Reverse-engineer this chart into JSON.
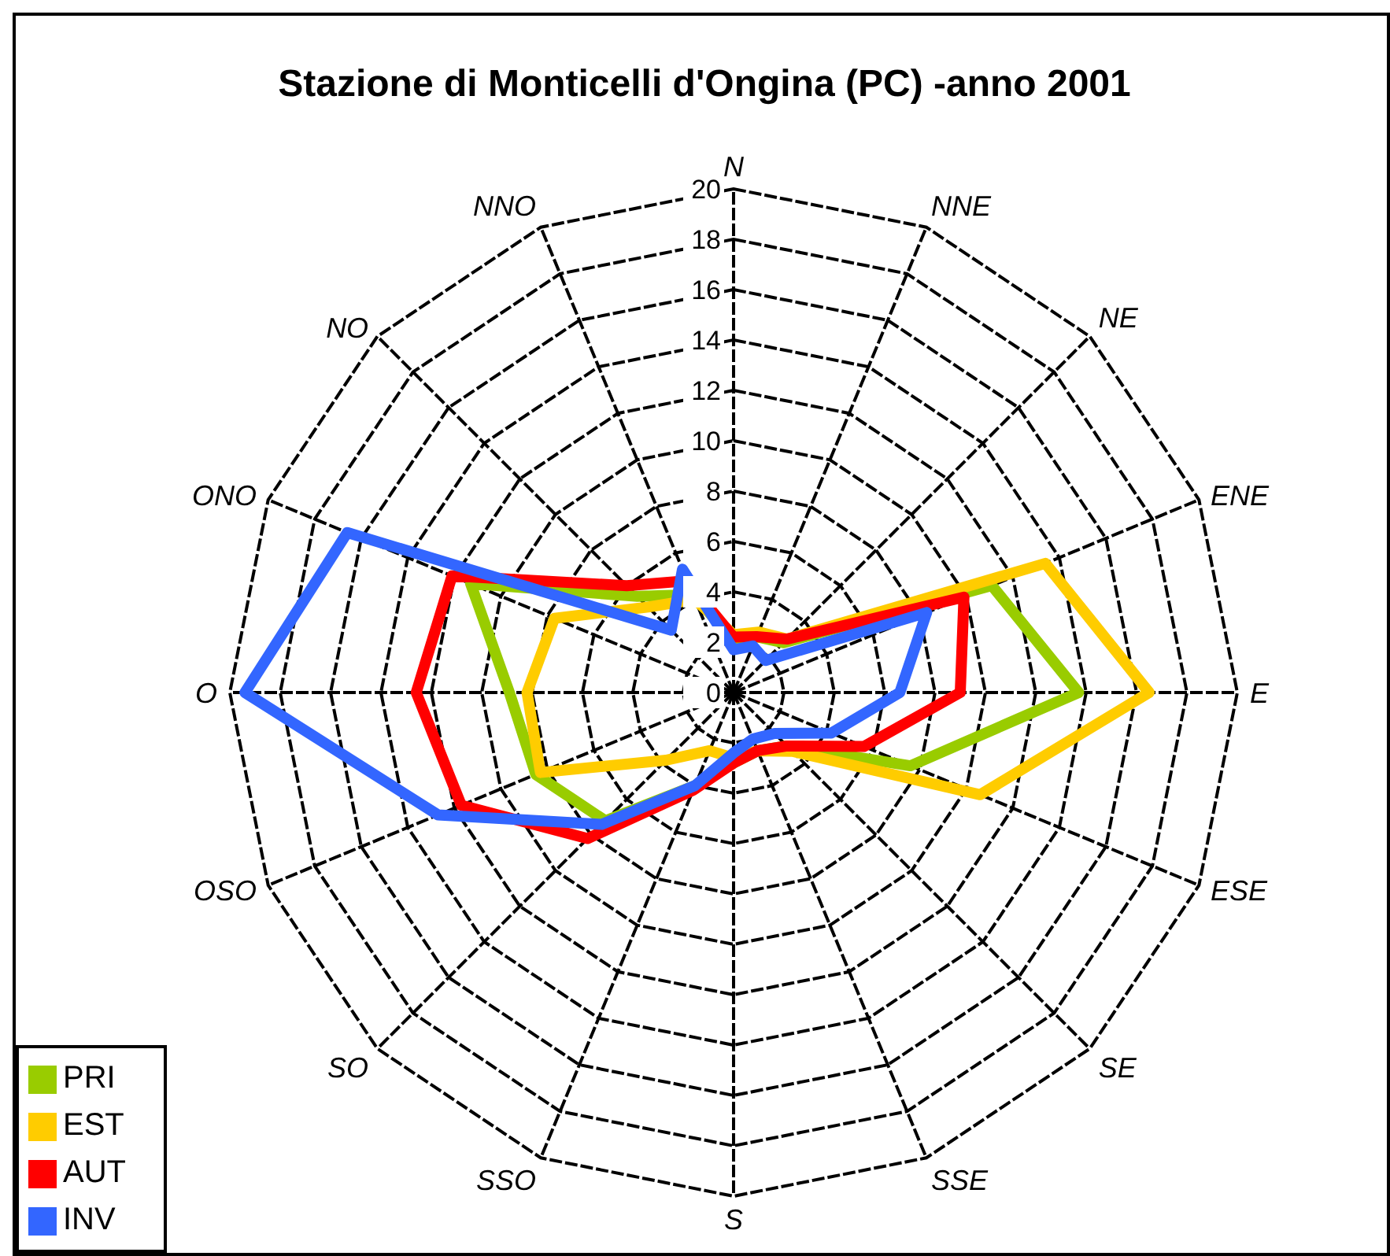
{
  "chart_data": {
    "type": "radar",
    "title": "Stazione di Monticelli d'Ongina (PC) -anno 2001",
    "categories": [
      "N",
      "NNE",
      "NE",
      "ENE",
      "E",
      "ESE",
      "SE",
      "SSE",
      "S",
      "SSO",
      "SO",
      "OSO",
      "O",
      "ONO",
      "NO",
      "NNO"
    ],
    "series": [
      {
        "name": "PRI",
        "color": "#99cc00",
        "values": [
          2.1,
          2.4,
          2.8,
          11.1,
          13.7,
          7.6,
          3,
          2.5,
          2.8,
          4,
          7.2,
          8.5,
          8.9,
          11.3,
          5.4,
          4.2
        ]
      },
      {
        "name": "EST",
        "color": "#ffcc00",
        "values": [
          2.3,
          2.6,
          3,
          13.4,
          16.5,
          10.6,
          3.3,
          2.5,
          2.6,
          2.5,
          3.8,
          8.3,
          8.2,
          7.7,
          4.8,
          4
        ]
      },
      {
        "name": "AUT",
        "color": "#ff0000",
        "values": [
          2.2,
          2.4,
          3,
          9.9,
          9,
          5.6,
          3,
          2.5,
          2.8,
          4.2,
          8.2,
          11.7,
          12.6,
          12.1,
          6,
          4.8
        ]
      },
      {
        "name": "INV",
        "color": "#3366ff",
        "values": [
          1.7,
          2,
          1.8,
          8.3,
          6.6,
          4.2,
          2.3,
          2,
          2.4,
          4,
          7.4,
          12.7,
          19.4,
          16.6,
          3.5,
          5.3
        ]
      }
    ],
    "ylim": [
      0,
      20
    ],
    "yticks": [
      0,
      2,
      4,
      6,
      8,
      10,
      12,
      14,
      16,
      18,
      20
    ],
    "grid": true,
    "legend": "bottom left"
  }
}
